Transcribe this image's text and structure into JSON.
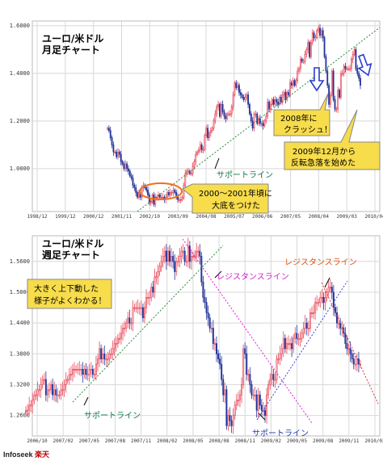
{
  "colors": {
    "up": "#e8485a",
    "down": "#223399",
    "grid": "#d8d8d8",
    "green": "#2a8a3a",
    "magenta": "#e020e0",
    "blue": "#3344cc",
    "red": "#e03030",
    "note_fill": "#f7dc4c",
    "circle": "#f07020"
  },
  "chart_data": [
    {
      "type": "candlestick",
      "title": "ユーロ/米ドル",
      "subtitle": "月足チャート",
      "ylim": [
        0.82,
        1.62
      ],
      "yticks": [
        1.0,
        1.2,
        1.4,
        1.6
      ],
      "ytick_labels": [
        "1.0000",
        "1.2000",
        "1.4000",
        "1.6000"
      ],
      "xticks": [
        "1998/12",
        "1999/12",
        "2000/12",
        "2001/11",
        "2002/10",
        "2003/09",
        "2004/08",
        "2005/07",
        "2006/06",
        "2007/05",
        "2008/04",
        "2009/03",
        "2010/04"
      ],
      "xlabel": "",
      "ylabel": "",
      "grid": true,
      "series": [
        {
          "values": [
            1.17,
            1.16,
            1.13,
            1.1,
            1.07,
            1.07,
            1.05,
            1.07,
            1.06,
            1.03,
            1.02,
            1.0,
            1.02,
            1.0,
            0.99,
            0.97,
            0.96,
            0.93,
            0.92,
            0.9,
            0.88,
            0.9,
            0.88,
            0.92,
            0.93,
            0.92,
            0.91,
            0.89,
            0.86,
            0.86,
            0.89,
            0.85,
            0.88,
            0.88,
            0.89,
            0.88,
            0.88,
            0.88,
            0.87,
            0.88,
            0.9,
            0.89,
            0.9,
            0.9,
            0.91,
            0.9,
            0.88,
            0.87,
            0.87,
            0.87,
            0.88,
            0.93,
            0.98,
            0.99,
            0.99,
            0.98,
            0.98,
            1.01,
            1.03,
            1.06,
            1.07,
            1.08,
            1.1,
            1.08,
            1.08,
            1.14,
            1.17,
            1.13,
            1.15,
            1.16,
            1.17,
            1.2,
            1.23,
            1.26,
            1.27,
            1.22,
            1.27,
            1.24,
            1.22,
            1.21,
            1.23,
            1.23,
            1.23,
            1.26,
            1.31,
            1.36,
            1.34,
            1.35,
            1.32,
            1.31,
            1.3,
            1.29,
            1.3,
            1.31,
            1.27,
            1.23,
            1.2,
            1.17,
            1.23,
            1.23,
            1.19,
            1.21,
            1.19,
            1.19,
            1.18,
            1.2,
            1.22,
            1.28,
            1.25,
            1.27,
            1.29,
            1.27,
            1.29,
            1.28,
            1.27,
            1.3,
            1.28,
            1.31,
            1.32,
            1.29,
            1.32,
            1.31,
            1.36,
            1.35,
            1.37,
            1.35,
            1.37,
            1.41,
            1.42,
            1.46,
            1.45,
            1.45,
            1.48,
            1.5,
            1.53,
            1.47,
            1.53,
            1.57,
            1.55,
            1.55,
            1.58,
            1.59,
            1.56,
            1.58,
            1.55,
            1.47,
            1.41,
            1.35,
            1.27,
            1.31,
            1.41,
            1.29,
            1.25,
            1.25,
            1.33,
            1.3,
            1.4,
            1.4,
            1.43,
            1.42,
            1.42,
            1.42,
            1.42,
            1.46,
            1.48,
            1.5,
            1.42,
            1.4,
            1.38,
            1.35
          ]
        }
      ]
    },
    {
      "type": "candlestick",
      "title": "ユーロ/米ドル",
      "subtitle": "週足チャート",
      "ylim": [
        1.22,
        1.61
      ],
      "yticks": [
        1.26,
        1.32,
        1.38,
        1.44,
        1.5,
        1.56
      ],
      "ytick_labels": [
        "1.2600",
        "1.3200",
        "1.3800",
        "1.4400",
        "1.5000",
        "1.5600"
      ],
      "xticks": [
        "2006/10",
        "2007/02",
        "2007/05",
        "2007/08",
        "2007/11",
        "2008/02",
        "2008/05",
        "2008/08",
        "2008/11",
        "2009/02",
        "2009/05",
        "2009/08",
        "2009/11",
        "2010/02"
      ],
      "xlabel": "",
      "ylabel": "",
      "grid": true,
      "series": [
        {
          "values": [
            1.27,
            1.27,
            1.28,
            1.28,
            1.29,
            1.3,
            1.3,
            1.31,
            1.31,
            1.32,
            1.33,
            1.33,
            1.3,
            1.31,
            1.31,
            1.32,
            1.3,
            1.31,
            1.3,
            1.3,
            1.3,
            1.31,
            1.31,
            1.32,
            1.33,
            1.33,
            1.34,
            1.34,
            1.35,
            1.35,
            1.35,
            1.35,
            1.35,
            1.35,
            1.34,
            1.35,
            1.34,
            1.34,
            1.35,
            1.35,
            1.34,
            1.34,
            1.36,
            1.37,
            1.39,
            1.37,
            1.38,
            1.37,
            1.37,
            1.37,
            1.38,
            1.38,
            1.39,
            1.4,
            1.4,
            1.41,
            1.41,
            1.42,
            1.43,
            1.43,
            1.44,
            1.45,
            1.44,
            1.44,
            1.47,
            1.47,
            1.47,
            1.47,
            1.47,
            1.47,
            1.45,
            1.47,
            1.49,
            1.49,
            1.49,
            1.51,
            1.5,
            1.53,
            1.53,
            1.54,
            1.55,
            1.56,
            1.57,
            1.58,
            1.56,
            1.58,
            1.56,
            1.57,
            1.56,
            1.54,
            1.56,
            1.56,
            1.57,
            1.58,
            1.58,
            1.56,
            1.56,
            1.59,
            1.56,
            1.57,
            1.57,
            1.57,
            1.58,
            1.58,
            1.57,
            1.52,
            1.49,
            1.48,
            1.46,
            1.45,
            1.43,
            1.43,
            1.4,
            1.4,
            1.38,
            1.37,
            1.36,
            1.33,
            1.3,
            1.31,
            1.24,
            1.26,
            1.25,
            1.24,
            1.26,
            1.28,
            1.29,
            1.29,
            1.3,
            1.32,
            1.39,
            1.38,
            1.34,
            1.34,
            1.32,
            1.3,
            1.3,
            1.3,
            1.27,
            1.3,
            1.28,
            1.27,
            1.27,
            1.26,
            1.3,
            1.32,
            1.33,
            1.34,
            1.33,
            1.33,
            1.37,
            1.37,
            1.38,
            1.39,
            1.41,
            1.39,
            1.4,
            1.4,
            1.4,
            1.39,
            1.41,
            1.42,
            1.41,
            1.41,
            1.41,
            1.42,
            1.43,
            1.44,
            1.43,
            1.43,
            1.46,
            1.46,
            1.46,
            1.48,
            1.48,
            1.48,
            1.49,
            1.49,
            1.48,
            1.49,
            1.5,
            1.51,
            1.51,
            1.5,
            1.47,
            1.46,
            1.44,
            1.44,
            1.43,
            1.43,
            1.42,
            1.4,
            1.39,
            1.39,
            1.38,
            1.37,
            1.36,
            1.36,
            1.37,
            1.36,
            1.36
          ]
        }
      ]
    }
  ],
  "monthly": {
    "title": "ユーロ/米ドル",
    "subtitle": "月足チャート",
    "support_label": "サポートライン",
    "note_bottom": [
      "2000～2001年頃に",
      "大底をつけた"
    ],
    "note_2008": [
      "2008年に",
      "クラッシュ！"
    ],
    "note_2009": [
      "2009年12月から",
      "反転急落を始めた"
    ]
  },
  "weekly": {
    "title": "ユーロ/米ドル",
    "subtitle": "週足チャート",
    "note": [
      "大きく上下動した",
      "様子がよくわかる！"
    ],
    "support_label_1": "サポートライン",
    "support_label_2": "サポートライン",
    "resistance_label_1": "レジスタンスライン",
    "resistance_label_2": "レジスタンスライン"
  },
  "footer": {
    "brand": "Infoseek",
    "brand_accent": "楽天"
  }
}
